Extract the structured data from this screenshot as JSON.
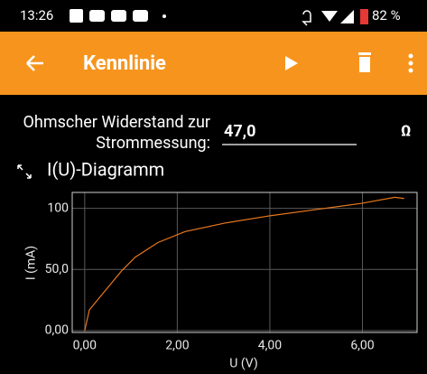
{
  "status_bar": {
    "time": "13:26",
    "battery": "82 %"
  },
  "app_bar": {
    "title": "Kennlinie"
  },
  "form": {
    "label_line1": "Ohmscher Widerstand zur",
    "label_line2": "Strommessung:",
    "input_value": "47,0",
    "unit": "Ω"
  },
  "chart_data": {
    "type": "line",
    "title": "I(U)-Diagramm",
    "x_label": "U (V)",
    "y_label": "I (mA)",
    "x": [
      0,
      0.1,
      0.8,
      1.09,
      1.58,
      2.17,
      3.04,
      4.02,
      5.0,
      5.97,
      6.7,
      6.9
    ],
    "values": [
      0,
      17,
      49,
      60,
      72,
      81,
      88,
      94,
      99,
      104,
      109,
      108
    ],
    "color": "#e8781e",
    "xlim": [
      -0.27,
      7.18
    ],
    "ylim": [
      -1.5,
      113
    ],
    "xticks": [
      {
        "value": 0,
        "label": "0,00"
      },
      {
        "value": 2,
        "label": "2,00"
      },
      {
        "value": 4,
        "label": "4,00"
      },
      {
        "value": 6,
        "label": "6,00"
      }
    ],
    "yticks": [
      {
        "value": 0,
        "label": "0,00"
      },
      {
        "value": 50,
        "label": "50,0"
      },
      100
    ],
    "grid": true
  }
}
